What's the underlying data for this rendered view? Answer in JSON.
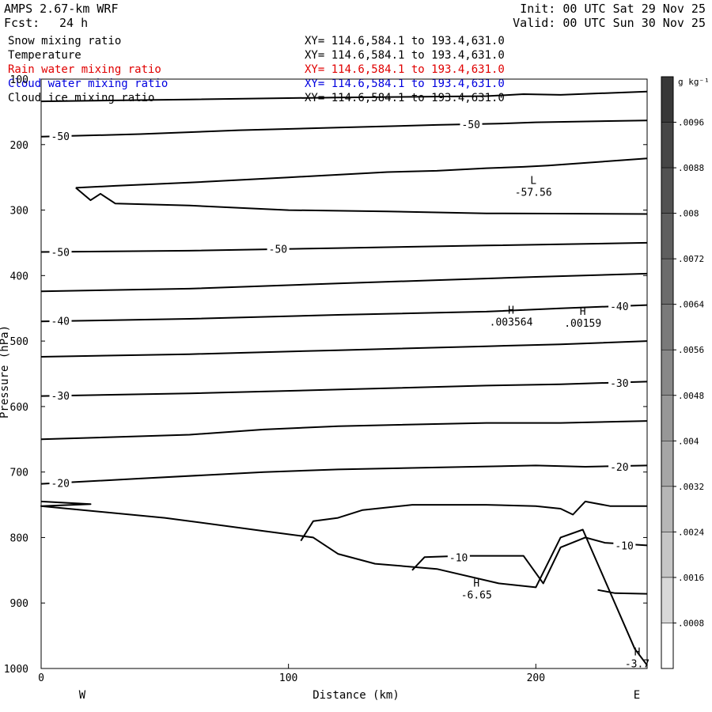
{
  "header": {
    "model": "AMPS 2.67-km WRF",
    "fcst_label": "Fcst:",
    "fcst_value": "24 h",
    "init": "Init: 00 UTC Sat 29 Nov 25",
    "valid": "Valid: 00 UTC Sun 30 Nov 25"
  },
  "fields": [
    {
      "name": "Snow mixing ratio",
      "xy": "XY= 114.6,584.1 to 193.4,631.0",
      "color": "#000000"
    },
    {
      "name": "Temperature",
      "xy": "XY= 114.6,584.1 to 193.4,631.0",
      "color": "#000000"
    },
    {
      "name": "Rain water mixing ratio",
      "xy": "XY= 114.6,584.1 to 193.4,631.0",
      "color": "#e00000"
    },
    {
      "name": "Cloud water mixing ratio",
      "xy": "XY= 114.6,584.1 to 193.4,631.0",
      "color": "#0000e0"
    },
    {
      "name": "Cloud ice mixing ratio",
      "xy": "XY= 114.6,584.1 to 193.4,631.0",
      "color": "#000000"
    }
  ],
  "chart_data": {
    "type": "contour",
    "xlabel": "Distance (km)",
    "ylabel": "Pressure (hPa)",
    "xlim": [
      0,
      245
    ],
    "ylim": [
      1000,
      100
    ],
    "x_ticks": [
      0,
      100,
      200
    ],
    "y_ticks": [
      100,
      200,
      300,
      400,
      500,
      600,
      700,
      800,
      900,
      1000
    ],
    "x_end_labels": {
      "left": "W",
      "right": "E"
    },
    "temperature_contours": [
      {
        "points": [
          [
            0,
            134
          ],
          [
            60,
            131
          ],
          [
            120,
            128
          ],
          [
            180,
            126
          ],
          [
            190,
            124
          ],
          [
            195,
            123
          ],
          [
            210,
            124
          ],
          [
            245,
            119
          ]
        ]
      },
      {
        "points": [
          [
            0,
            188
          ],
          [
            40,
            184
          ],
          [
            80,
            178
          ],
          [
            120,
            174
          ],
          [
            160,
            170
          ],
          [
            185,
            168
          ],
          [
            200,
            166
          ],
          [
            245,
            163
          ]
        ],
        "labels": [
          {
            "x": 4,
            "p": 187,
            "text": "-50"
          },
          {
            "x": 170,
            "p": 169,
            "text": "-50"
          }
        ]
      },
      {
        "points": [
          [
            14,
            266
          ],
          [
            30,
            263
          ],
          [
            60,
            258
          ],
          [
            100,
            250
          ],
          [
            120,
            246
          ],
          [
            140,
            242
          ],
          [
            160,
            240
          ],
          [
            180,
            236
          ],
          [
            195,
            234
          ],
          [
            205,
            232
          ],
          [
            245,
            221
          ]
        ]
      },
      {
        "points": [
          [
            14,
            266
          ],
          [
            20,
            285
          ],
          [
            24,
            275
          ],
          [
            30,
            290
          ],
          [
            60,
            293
          ],
          [
            100,
            300
          ],
          [
            140,
            302
          ],
          [
            180,
            305
          ],
          [
            245,
            306
          ]
        ]
      },
      {
        "points": [
          [
            0,
            364
          ],
          [
            60,
            362
          ],
          [
            120,
            358
          ],
          [
            180,
            354
          ],
          [
            245,
            350
          ]
        ],
        "labels": [
          {
            "x": 4,
            "p": 364,
            "text": "-50"
          },
          {
            "x": 92,
            "p": 359,
            "text": "-50"
          }
        ]
      },
      {
        "points": [
          [
            0,
            424
          ],
          [
            60,
            420
          ],
          [
            120,
            412
          ],
          [
            160,
            407
          ],
          [
            200,
            402
          ],
          [
            245,
            397
          ]
        ]
      },
      {
        "points": [
          [
            0,
            470
          ],
          [
            60,
            466
          ],
          [
            120,
            460
          ],
          [
            180,
            455
          ],
          [
            210,
            450
          ],
          [
            245,
            445
          ]
        ],
        "labels": [
          {
            "x": 4,
            "p": 469,
            "text": "-40"
          },
          {
            "x": 230,
            "p": 447,
            "text": "-40"
          }
        ]
      },
      {
        "points": [
          [
            0,
            524
          ],
          [
            60,
            520
          ],
          [
            120,
            514
          ],
          [
            180,
            508
          ],
          [
            210,
            505
          ],
          [
            245,
            500
          ]
        ]
      },
      {
        "points": [
          [
            0,
            584
          ],
          [
            60,
            580
          ],
          [
            120,
            574
          ],
          [
            180,
            568
          ],
          [
            210,
            566
          ],
          [
            245,
            562
          ]
        ],
        "labels": [
          {
            "x": 4,
            "p": 583,
            "text": "-30"
          },
          {
            "x": 230,
            "p": 564,
            "text": "-30"
          }
        ]
      },
      {
        "points": [
          [
            0,
            650
          ],
          [
            60,
            643
          ],
          [
            90,
            635
          ],
          [
            120,
            630
          ],
          [
            180,
            625
          ],
          [
            210,
            625
          ],
          [
            245,
            622
          ]
        ]
      },
      {
        "points": [
          [
            0,
            718
          ],
          [
            40,
            710
          ],
          [
            90,
            700
          ],
          [
            120,
            696
          ],
          [
            160,
            693
          ],
          [
            200,
            690
          ],
          [
            220,
            692
          ],
          [
            245,
            690
          ]
        ],
        "labels": [
          {
            "x": 4,
            "p": 717,
            "text": "-20"
          },
          {
            "x": 230,
            "p": 692,
            "text": "-20"
          }
        ]
      },
      {
        "points": [
          [
            0,
            745
          ],
          [
            20,
            749
          ],
          [
            0,
            752
          ],
          [
            50,
            770
          ],
          [
            90,
            790
          ],
          [
            110,
            800
          ],
          [
            120,
            825
          ],
          [
            135,
            840
          ],
          [
            160,
            848
          ],
          [
            185,
            870
          ],
          [
            200,
            876
          ],
          [
            210,
            800
          ],
          [
            219,
            788
          ],
          [
            225,
            840
          ],
          [
            240,
            970
          ],
          [
            245,
            995
          ]
        ]
      },
      {
        "points": [
          [
            105,
            805
          ],
          [
            110,
            775
          ],
          [
            120,
            770
          ],
          [
            130,
            758
          ],
          [
            150,
            750
          ],
          [
            180,
            750
          ],
          [
            200,
            752
          ],
          [
            210,
            756
          ],
          [
            215,
            765
          ],
          [
            220,
            745
          ],
          [
            230,
            752
          ],
          [
            245,
            752
          ]
        ]
      },
      {
        "points": [
          [
            150,
            850
          ],
          [
            155,
            830
          ],
          [
            170,
            828
          ],
          [
            195,
            828
          ],
          [
            203,
            870
          ],
          [
            210,
            815
          ],
          [
            220,
            800
          ],
          [
            228,
            808
          ],
          [
            245,
            812
          ]
        ],
        "labels": [
          {
            "x": 165,
            "p": 830,
            "text": "-10"
          },
          {
            "x": 232,
            "p": 812,
            "text": "-10"
          }
        ]
      },
      {
        "points": [
          [
            225,
            880
          ],
          [
            232,
            885
          ],
          [
            245,
            886
          ]
        ]
      }
    ],
    "annotations": [
      {
        "type": "L",
        "x": 199,
        "p": 260,
        "value": "-57.56"
      },
      {
        "type": "H",
        "x": 190,
        "p": 458,
        "value": ".003564"
      },
      {
        "type": "H",
        "x": 219,
        "p": 460,
        "value": ".00159"
      },
      {
        "type": "H",
        "x": 176,
        "p": 875,
        "value": "-6.65"
      },
      {
        "type": "H",
        "x": 241,
        "p": 980,
        "value": "-3.7"
      }
    ],
    "colorbar": {
      "unit": "g kg⁻¹",
      "tick_labels": [
        ".0096",
        ".0088",
        ".008",
        ".0072",
        ".0064",
        ".0056",
        ".0048",
        ".004",
        ".0032",
        ".0024",
        ".0016",
        ".0008"
      ],
      "levels": 13,
      "shades": [
        "#383838",
        "#464646",
        "#525252",
        "#5f5f5f",
        "#6c6c6c",
        "#7a7a7a",
        "#888888",
        "#979797",
        "#a6a6a6",
        "#b6b6b6",
        "#c6c6c6",
        "#d8d8d8",
        "#ffffff"
      ]
    }
  }
}
